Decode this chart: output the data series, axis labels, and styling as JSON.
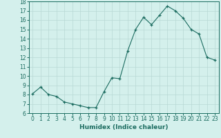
{
  "x": [
    0,
    1,
    2,
    3,
    4,
    5,
    6,
    7,
    8,
    9,
    10,
    11,
    12,
    13,
    14,
    15,
    16,
    17,
    18,
    19,
    20,
    21,
    22,
    23
  ],
  "y": [
    8.1,
    8.8,
    8.0,
    7.8,
    7.2,
    7.0,
    6.8,
    6.6,
    6.6,
    8.3,
    9.8,
    9.7,
    12.7,
    15.0,
    16.3,
    15.5,
    16.5,
    17.5,
    17.0,
    16.2,
    15.0,
    14.5,
    12.0,
    11.7
  ],
  "xlabel": "Humidex (Indice chaleur)",
  "ylim": [
    6,
    18
  ],
  "xlim": [
    -0.5,
    23.5
  ],
  "yticks": [
    6,
    7,
    8,
    9,
    10,
    11,
    12,
    13,
    14,
    15,
    16,
    17,
    18
  ],
  "xticks": [
    0,
    1,
    2,
    3,
    4,
    5,
    6,
    7,
    8,
    9,
    10,
    11,
    12,
    13,
    14,
    15,
    16,
    17,
    18,
    19,
    20,
    21,
    22,
    23
  ],
  "line_color": "#1a6b5f",
  "marker": "+",
  "bg_color": "#d4f0ec",
  "grid_color": "#b8d8d4",
  "tick_color": "#1a6b5f",
  "spine_color": "#1a6b5f"
}
